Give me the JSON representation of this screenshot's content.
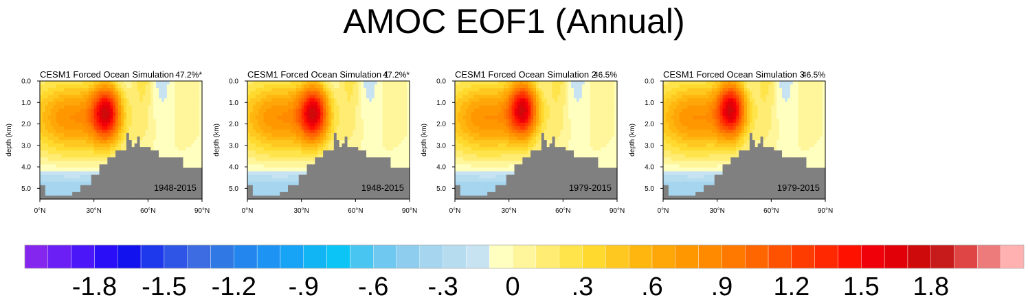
{
  "title": "AMOC EOF1 (Annual)",
  "chart_data": {
    "type": "heatmap",
    "title": "AMOC EOF1 (Annual)",
    "ylabel": "depth (km)",
    "xlabel": "",
    "x_ticks": [
      "0°N",
      "30°N",
      "60°N",
      "90°N"
    ],
    "y_ticks": [
      "0.0",
      "1.0",
      "2.0",
      "3.0",
      "4.0",
      "5.0"
    ],
    "xlim": [
      0,
      90
    ],
    "ylim": [
      5.5,
      0
    ],
    "panels": [
      {
        "name": "CESM1 Forced Ocean Simulation",
        "pct": "47.2%*",
        "period": "1948-2015",
        "peak_lat": 37,
        "peak_depth": 1.5
      },
      {
        "name": "CESM1 Forced Ocean Simulation 1",
        "pct": "47.2%*",
        "period": "1948-2015",
        "peak_lat": 37,
        "peak_depth": 1.5
      },
      {
        "name": "CESM1 Forced Ocean Simulation 2",
        "pct": "46.5%",
        "period": "1979-2015",
        "peak_lat": 38,
        "peak_depth": 1.3
      },
      {
        "name": "CESM1 Forced Ocean Simulation 3",
        "pct": "46.5%",
        "period": "1979-2015",
        "peak_lat": 38,
        "peak_depth": 1.3
      }
    ],
    "colorbar": {
      "labels": [
        "-1.8",
        "-1.5",
        "-1.2",
        "-.9",
        "-.6",
        "-.3",
        "0",
        ".3",
        ".6",
        ".9",
        "1.2",
        "1.5",
        "1.8"
      ],
      "levels": [
        -2.1,
        -2.0,
        -1.9,
        -1.8,
        -1.7,
        -1.6,
        -1.5,
        -1.4,
        -1.3,
        -1.2,
        -1.1,
        -1.0,
        -0.9,
        -0.8,
        -0.7,
        -0.6,
        -0.5,
        -0.4,
        -0.3,
        -0.2,
        -0.1,
        0.0,
        0.1,
        0.2,
        0.3,
        0.4,
        0.5,
        0.6,
        0.7,
        0.8,
        0.9,
        1.0,
        1.1,
        1.2,
        1.3,
        1.4,
        1.5,
        1.6,
        1.7,
        1.8,
        1.9,
        2.0,
        2.1
      ],
      "colors": [
        "#8526ef",
        "#6b1ff5",
        "#4b17f8",
        "#2b0ef8",
        "#1212ee",
        "#1e38ec",
        "#2f55e6",
        "#3d6be2",
        "#3078e4",
        "#2286ee",
        "#1d93f4",
        "#17a3f6",
        "#12b5f4",
        "#0cc4f5",
        "#49c5f1",
        "#6fc8ef",
        "#8ecdee",
        "#a5d5ef",
        "#b6dcf0",
        "#c7e3f2",
        "#ffffbf",
        "#fff59a",
        "#ffec73",
        "#ffe44c",
        "#ffd92e",
        "#ffc820",
        "#ffb60f",
        "#ffa608",
        "#ff9700",
        "#ff8a00",
        "#ff7900",
        "#ff6600",
        "#ff5200",
        "#ff3c00",
        "#ff2800",
        "#ff1100",
        "#f00008",
        "#e10008",
        "#cf0a0a",
        "#c71b1b",
        "#e04545",
        "#ee7b7b",
        "#ffb0b0"
      ]
    }
  }
}
